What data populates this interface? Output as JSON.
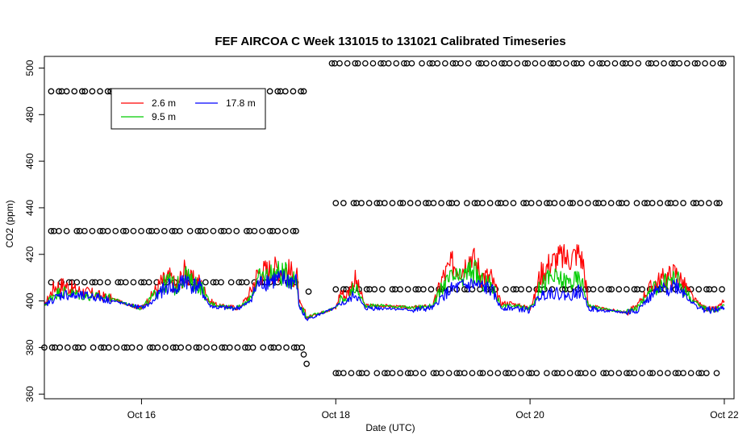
{
  "chart_data": {
    "type": "line",
    "title": "FEF AIRCOA C  Week 131015 to 131021  Calibrated Timeseries",
    "xlabel": "Date (UTC)",
    "ylabel": "CO2 (ppm)",
    "xlim": [
      15.0,
      22.1
    ],
    "ylim": [
      358,
      505
    ],
    "x_ticks": [
      {
        "value": 16,
        "label": "Oct 16"
      },
      {
        "value": 18,
        "label": "Oct 18"
      },
      {
        "value": 20,
        "label": "Oct 20"
      },
      {
        "value": 22,
        "label": "Oct 22"
      }
    ],
    "y_ticks": [
      360,
      380,
      400,
      420,
      440,
      460,
      480,
      500
    ],
    "legend": {
      "placement": "top-left",
      "entries": [
        {
          "name": "2.6 m",
          "color": "#ff0000"
        },
        {
          "name": "9.5 m",
          "color": "#00cc00"
        },
        {
          "name": "17.8 m",
          "color": "#0000ff"
        }
      ]
    },
    "series": [
      {
        "name": "2.6 m",
        "color": "#ff0000",
        "x": [
          15.0,
          15.1,
          15.2,
          15.3,
          15.5,
          15.7,
          15.9,
          16.0,
          16.1,
          16.2,
          16.3,
          16.35,
          16.45,
          16.5,
          16.6,
          16.7,
          16.8,
          17.0,
          17.1,
          17.2,
          17.3,
          17.4,
          17.5,
          17.6,
          17.62,
          17.7,
          18.0,
          18.05,
          18.1,
          18.2,
          18.25,
          18.3,
          18.5,
          18.8,
          19.0,
          19.1,
          19.2,
          19.3,
          19.4,
          19.5,
          19.6,
          19.7,
          19.8,
          20.0,
          20.05,
          20.1,
          20.2,
          20.3,
          20.4,
          20.5,
          20.55,
          20.6,
          20.7,
          21.0,
          21.1,
          21.2,
          21.3,
          21.4,
          21.5,
          21.6,
          21.7,
          21.8,
          21.9,
          22.0
        ],
        "y": [
          398,
          406,
          407,
          405,
          403,
          401,
          398,
          397,
          402,
          408,
          410,
          406,
          413,
          409,
          408,
          400,
          398,
          397,
          402,
          412,
          413,
          414,
          413,
          410,
          400,
          393,
          397,
          404,
          402,
          409,
          404,
          398,
          398,
          397,
          398,
          410,
          416,
          414,
          420,
          411,
          410,
          399,
          399,
          397,
          402,
          411,
          416,
          419,
          418,
          421,
          416,
          398,
          397,
          395,
          398,
          404,
          408,
          410,
          412,
          406,
          400,
          397,
          396,
          400
        ]
      },
      {
        "name": "9.5 m",
        "color": "#00cc00",
        "x": [
          15.0,
          15.1,
          15.2,
          15.3,
          15.5,
          15.7,
          15.9,
          16.0,
          16.1,
          16.2,
          16.3,
          16.35,
          16.45,
          16.5,
          16.6,
          16.7,
          16.8,
          17.0,
          17.1,
          17.2,
          17.3,
          17.4,
          17.5,
          17.6,
          17.62,
          17.7,
          18.0,
          18.05,
          18.1,
          18.2,
          18.25,
          18.3,
          18.5,
          18.8,
          19.0,
          19.1,
          19.2,
          19.3,
          19.4,
          19.5,
          19.6,
          19.7,
          19.8,
          20.0,
          20.05,
          20.1,
          20.2,
          20.3,
          20.4,
          20.5,
          20.55,
          20.6,
          20.7,
          21.0,
          21.1,
          21.2,
          21.3,
          21.4,
          21.5,
          21.6,
          21.7,
          21.8,
          21.9,
          22.0
        ],
        "y": [
          398,
          403,
          404,
          403,
          402,
          401,
          398,
          397,
          401,
          406,
          409,
          405,
          412,
          408,
          407,
          399,
          398,
          397,
          400,
          409,
          411,
          412,
          411,
          409,
          399,
          393,
          397,
          401,
          400,
          406,
          402,
          398,
          398,
          397,
          398,
          406,
          410,
          409,
          414,
          408,
          407,
          398,
          398,
          397,
          400,
          406,
          410,
          409,
          408,
          409,
          406,
          398,
          397,
          395,
          397,
          402,
          406,
          408,
          410,
          404,
          399,
          397,
          396,
          398
        ]
      },
      {
        "name": "17.8 m",
        "color": "#0000ff",
        "x": [
          15.0,
          15.1,
          15.2,
          15.3,
          15.5,
          15.7,
          15.9,
          16.0,
          16.1,
          16.2,
          16.3,
          16.35,
          16.45,
          16.5,
          16.6,
          16.7,
          16.8,
          17.0,
          17.1,
          17.2,
          17.3,
          17.4,
          17.5,
          17.6,
          17.62,
          17.7,
          18.0,
          18.05,
          18.1,
          18.2,
          18.25,
          18.3,
          18.5,
          18.8,
          19.0,
          19.1,
          19.2,
          19.3,
          19.4,
          19.5,
          19.6,
          19.7,
          19.8,
          20.0,
          20.05,
          20.1,
          20.2,
          20.3,
          20.4,
          20.5,
          20.55,
          20.6,
          20.7,
          21.0,
          21.1,
          21.2,
          21.3,
          21.4,
          21.5,
          21.6,
          21.7,
          21.8,
          21.9,
          22.0
        ],
        "y": [
          398,
          401,
          403,
          402,
          402,
          400,
          398,
          397,
          399,
          404,
          407,
          404,
          410,
          407,
          406,
          398,
          397,
          397,
          399,
          407,
          409,
          409,
          409,
          408,
          398,
          392,
          397,
          399,
          399,
          403,
          400,
          397,
          397,
          396,
          397,
          402,
          405,
          406,
          407,
          406,
          405,
          397,
          397,
          396,
          399,
          402,
          404,
          403,
          402,
          404,
          403,
          397,
          396,
          395,
          396,
          400,
          404,
          405,
          407,
          403,
          398,
          396,
          396,
          397
        ]
      },
      {
        "name": "calibration standards (circles)",
        "color": "#000000",
        "groups": [
          {
            "x_start": 15.07,
            "x_end": 17.65,
            "y": 490
          },
          {
            "x_start": 15.07,
            "x_end": 17.65,
            "y": 430
          },
          {
            "x_start": 15.07,
            "x_end": 17.65,
            "y": 408
          },
          {
            "x_start": 15.0,
            "x_end": 17.65,
            "y": 380
          },
          {
            "x_start": 17.96,
            "x_end": 22.0,
            "y": 502
          },
          {
            "x_start": 18.0,
            "x_end": 22.0,
            "y": 442
          },
          {
            "x_start": 18.0,
            "x_end": 22.0,
            "y": 405
          },
          {
            "x_start": 18.0,
            "x_end": 22.0,
            "y": 369
          }
        ],
        "extra_points": [
          {
            "x": 17.67,
            "y": 377
          },
          {
            "x": 17.7,
            "y": 373
          },
          {
            "x": 17.72,
            "y": 404
          }
        ]
      }
    ]
  }
}
